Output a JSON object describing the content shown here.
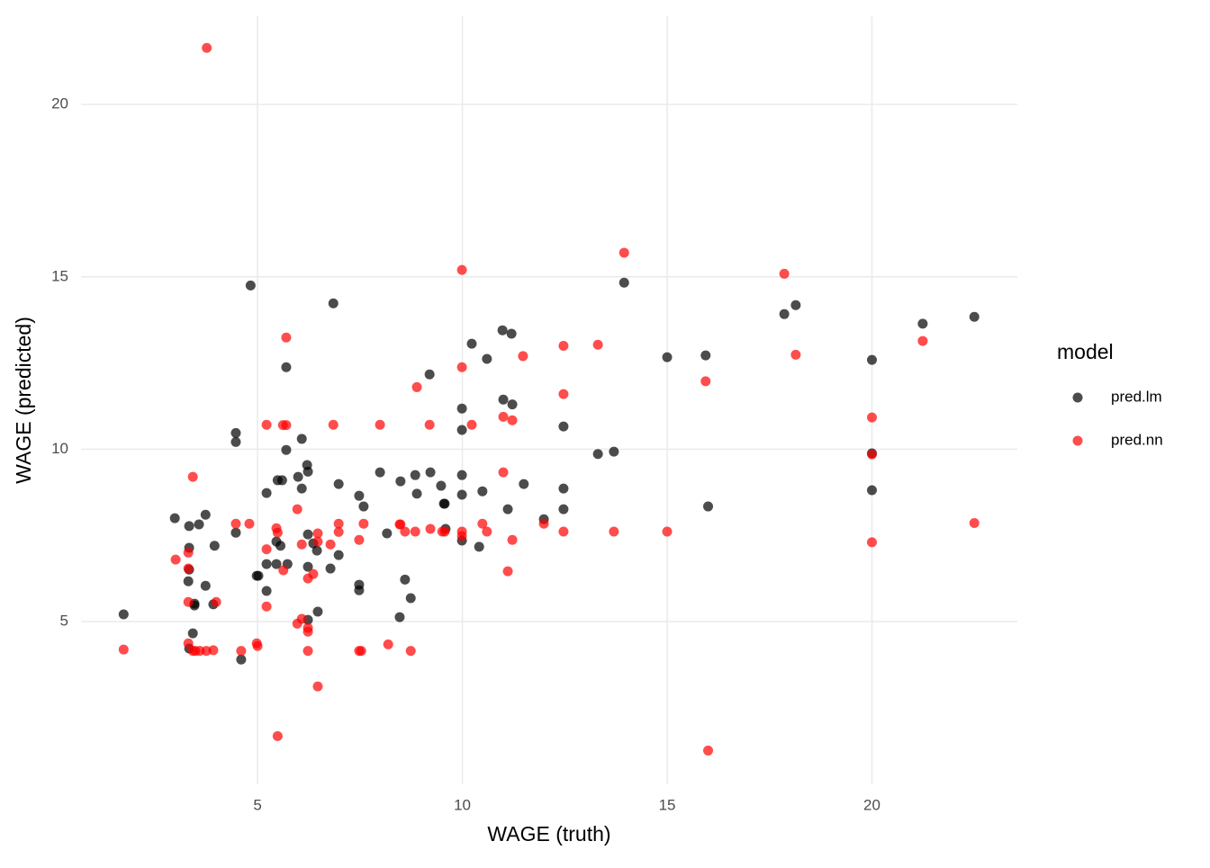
{
  "chart_data": {
    "type": "scatter",
    "x_label": "WAGE (truth)",
    "y_label": "WAGE (predicted)",
    "legend_title": "model",
    "legend_position": "right",
    "grid": true,
    "opacity": 0.7,
    "xlim": [
      0.69,
      23.55
    ],
    "ylim": [
      0.28,
      22.56
    ],
    "xticks": [
      5,
      10,
      15,
      20
    ],
    "yticks": [
      5,
      10,
      15,
      20
    ],
    "series": [
      {
        "name": "pred.lm",
        "color": "#000000",
        "x": [
          1.73,
          2.98,
          3.33,
          3.33,
          3.33,
          3.31,
          3.42,
          3.46,
          3.46,
          3.33,
          3.57,
          3.73,
          3.73,
          3.95,
          3.92,
          4.47,
          4.47,
          4.47,
          4.6,
          4.83,
          4.98,
          5.02,
          5.22,
          5.22,
          5.22,
          5.49,
          5.6,
          5.46,
          5.46,
          5.56,
          5.7,
          5.7,
          5.73,
          5.99,
          6.08,
          6.08,
          6.21,
          6.23,
          6.23,
          6.23,
          6.23,
          6.36,
          6.45,
          6.47,
          6.78,
          6.85,
          6.98,
          6.98,
          7.48,
          7.48,
          7.48,
          7.59,
          7.99,
          8.16,
          8.47,
          8.49,
          8.6,
          8.74,
          8.85,
          8.89,
          9.2,
          9.22,
          9.48,
          9.55,
          9.57,
          9.59,
          9.99,
          9.99,
          9.99,
          9.99,
          9.99,
          10.23,
          10.41,
          10.49,
          10.6,
          10.98,
          11.0,
          11.11,
          11.2,
          11.22,
          11.5,
          11.99,
          12.47,
          12.47,
          12.47,
          13.31,
          13.7,
          13.95,
          15.0,
          15.94,
          16.0,
          17.86,
          18.14,
          20.0,
          20.0,
          20.0,
          21.24,
          22.5
        ],
        "y": [
          5.21,
          8.0,
          7.77,
          7.14,
          6.51,
          6.17,
          4.66,
          5.52,
          5.47,
          4.22,
          7.82,
          8.1,
          6.04,
          7.2,
          5.5,
          10.47,
          10.21,
          7.58,
          3.9,
          14.75,
          6.33,
          6.33,
          8.73,
          6.67,
          5.89,
          9.1,
          9.1,
          6.67,
          7.32,
          7.2,
          9.98,
          12.38,
          6.67,
          9.2,
          10.3,
          8.86,
          9.54,
          9.35,
          7.53,
          6.59,
          5.05,
          7.27,
          7.06,
          5.29,
          6.54,
          14.23,
          8.99,
          6.93,
          8.65,
          6.07,
          5.91,
          8.34,
          9.33,
          7.56,
          5.13,
          9.07,
          6.22,
          5.68,
          9.25,
          8.71,
          12.17,
          9.33,
          8.94,
          8.42,
          8.42,
          7.69,
          11.18,
          10.56,
          9.25,
          8.68,
          7.35,
          13.06,
          7.17,
          8.78,
          12.62,
          13.45,
          11.44,
          8.26,
          13.35,
          11.3,
          8.99,
          7.97,
          10.66,
          8.86,
          8.26,
          9.86,
          9.93,
          14.83,
          12.67,
          12.72,
          8.34,
          13.92,
          14.18,
          12.59,
          9.88,
          8.81,
          13.64,
          13.84
        ]
      },
      {
        "name": "pred.nn",
        "color": "#ff0000",
        "x": [
          1.73,
          3.0,
          3.31,
          3.31,
          3.31,
          3.31,
          3.42,
          3.42,
          3.48,
          3.59,
          3.75,
          3.92,
          3.99,
          4.47,
          4.6,
          4.8,
          4.98,
          5.0,
          5.22,
          5.22,
          5.22,
          5.46,
          5.49,
          5.62,
          5.7,
          5.7,
          5.63,
          5.97,
          5.97,
          6.08,
          6.08,
          6.23,
          6.23,
          6.23,
          6.23,
          6.36,
          6.47,
          6.47,
          6.47,
          6.78,
          6.85,
          6.98,
          6.98,
          7.48,
          7.48,
          7.53,
          7.59,
          7.99,
          8.19,
          8.47,
          8.49,
          8.6,
          8.74,
          8.85,
          8.89,
          9.2,
          9.22,
          9.51,
          9.57,
          9.99,
          9.99,
          9.99,
          9.99,
          10.23,
          10.49,
          10.6,
          11.0,
          11.0,
          11.11,
          11.22,
          11.22,
          11.48,
          11.99,
          12.47,
          12.47,
          12.47,
          13.31,
          13.7,
          13.95,
          15.0,
          15.94,
          16.0,
          17.86,
          18.14,
          20.0,
          20.0,
          20.0,
          21.24,
          22.5,
          3.76,
          5.49
        ],
        "y": [
          4.19,
          6.8,
          7.0,
          6.54,
          5.57,
          4.37,
          9.2,
          4.15,
          4.15,
          4.15,
          4.15,
          4.17,
          5.57,
          7.84,
          4.15,
          7.84,
          4.37,
          4.29,
          10.71,
          7.1,
          5.44,
          7.71,
          7.58,
          10.7,
          10.7,
          13.24,
          6.49,
          8.26,
          4.94,
          5.08,
          7.24,
          4.82,
          4.71,
          6.25,
          4.15,
          6.38,
          7.56,
          7.32,
          3.12,
          7.24,
          10.71,
          7.84,
          7.6,
          7.37,
          4.15,
          4.15,
          7.84,
          10.71,
          4.34,
          7.82,
          7.82,
          7.61,
          4.15,
          7.61,
          11.8,
          10.71,
          7.69,
          7.61,
          7.61,
          15.2,
          12.38,
          7.61,
          7.48,
          10.71,
          7.84,
          7.61,
          9.33,
          10.94,
          6.46,
          7.37,
          10.84,
          12.7,
          7.84,
          13.0,
          11.6,
          7.61,
          13.03,
          7.61,
          15.7,
          7.61,
          11.97,
          1.26,
          15.09,
          12.74,
          10.92,
          9.85,
          7.3,
          13.14,
          7.86,
          21.64,
          1.68
        ]
      }
    ]
  }
}
